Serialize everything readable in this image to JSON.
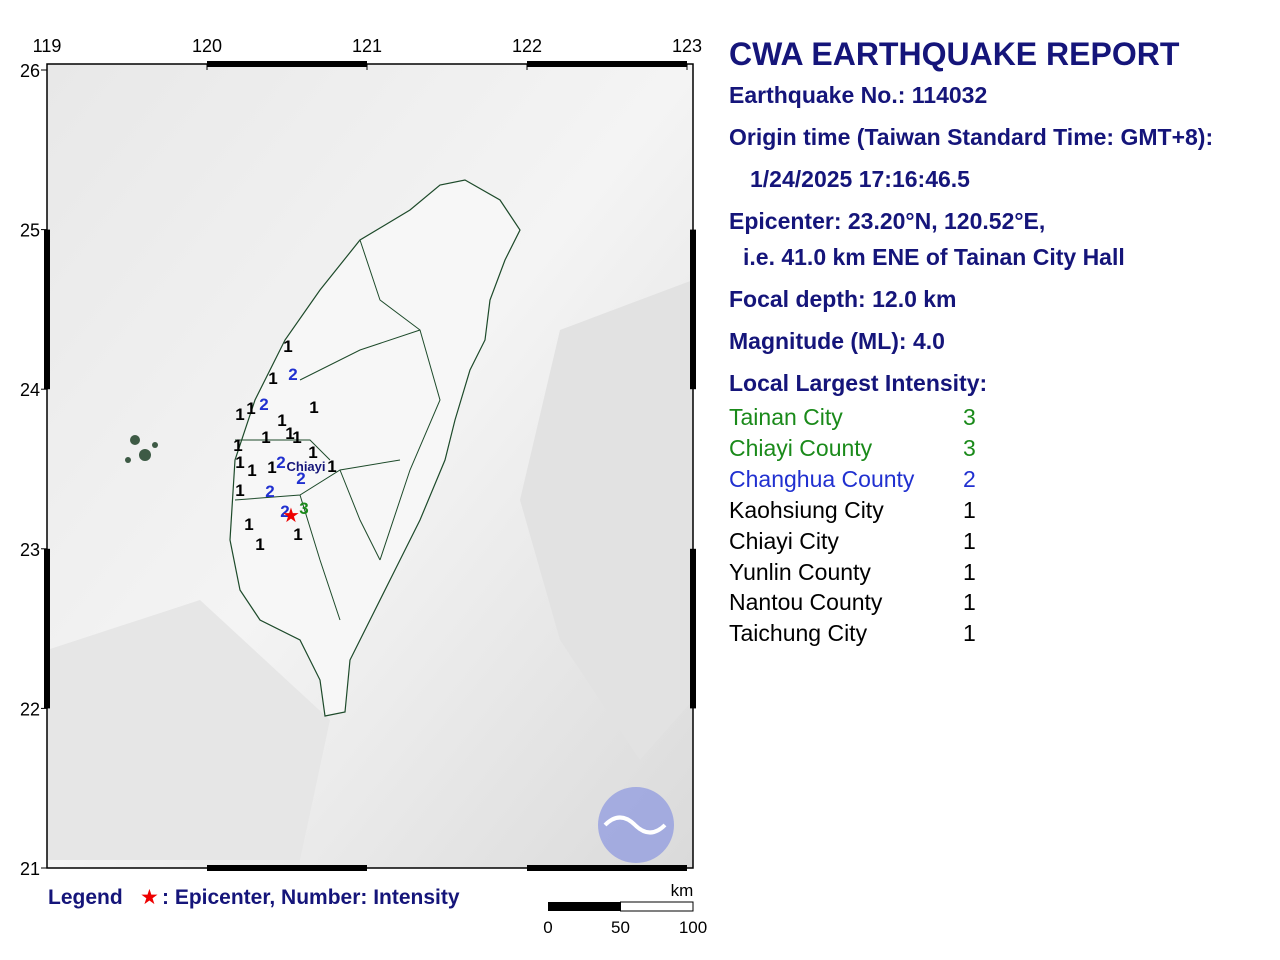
{
  "map": {
    "lon_ticks": [
      119,
      120,
      121,
      122,
      123
    ],
    "lat_ticks": [
      26,
      25,
      24,
      23,
      22,
      21
    ],
    "city_label": "Chiayi",
    "intensity_labels": [
      1,
      1,
      2,
      2,
      1,
      1,
      1,
      1,
      1,
      1,
      1,
      1,
      1,
      1,
      1,
      2,
      1,
      1,
      1,
      2,
      2,
      2,
      3,
      1,
      1,
      1
    ],
    "scale": {
      "unit": "km",
      "ticks": [
        0,
        50,
        100
      ]
    },
    "legend": {
      "title": "Legend",
      "symbol": "★",
      "text": ": Epicenter, Number: Intensity"
    }
  },
  "report": {
    "title": "CWA EARTHQUAKE REPORT",
    "earthquake_no": "Earthquake No.: 114032",
    "origin_time_label": "Origin time (Taiwan Standard Time: GMT+8):",
    "origin_time": "1/24/2025 17:16:46.5",
    "epicenter": "Epicenter: 23.20°N, 120.52°E,",
    "epicenter_ref": "i.e. 41.0 km ENE of Tainan City Hall",
    "focal_depth": "Focal depth: 12.0 km",
    "magnitude": "Magnitude (ML): 4.0",
    "intensity_title": "Local Largest Intensity:",
    "intensities": [
      {
        "area": "Tainan City",
        "value": 3
      },
      {
        "area": "Chiayi County",
        "value": 3
      },
      {
        "area": "Changhua County",
        "value": 2
      },
      {
        "area": "Kaohsiung City",
        "value": 1
      },
      {
        "area": "Chiayi City",
        "value": 1
      },
      {
        "area": "Yunlin County",
        "value": 1
      },
      {
        "area": "Nantou County",
        "value": 1
      },
      {
        "area": "Taichung City",
        "value": 1
      }
    ]
  }
}
